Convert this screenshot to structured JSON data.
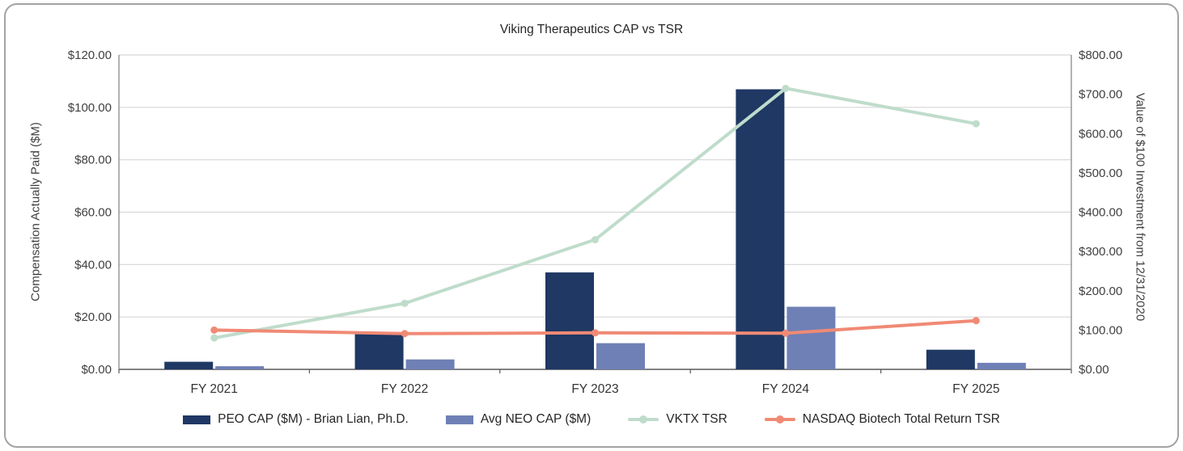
{
  "chart_data": {
    "type": "combo",
    "title": "Viking Therapeutics CAP vs TSR",
    "categories": [
      "FY 2021",
      "FY 2022",
      "FY 2023",
      "FY 2024",
      "FY 2025"
    ],
    "left_axis": {
      "label": "Compensation Actually Paid ($M)",
      "min": 0,
      "max": 120,
      "step": 20,
      "tick_prefix": "$",
      "tick_decimals": 2
    },
    "right_axis": {
      "label": "Value of $100 Investment from 12/31/2020",
      "min": 0,
      "max": 800,
      "step": 100,
      "tick_prefix": "$",
      "tick_decimals": 2
    },
    "bar_series": [
      {
        "name": "PEO CAP ($M) - Brian Lian, Ph.D.",
        "axis": "left",
        "color": "#1F3864",
        "values": [
          2.9,
          13.5,
          37.0,
          106.9,
          7.5
        ]
      },
      {
        "name": "Avg NEO CAP ($M)",
        "axis": "left",
        "color": "#6F80B6",
        "values": [
          1.2,
          3.8,
          10.0,
          23.9,
          2.5
        ]
      }
    ],
    "line_series": [
      {
        "name": "VKTX TSR",
        "axis": "right",
        "color": "#BFDCCB",
        "values": [
          80,
          168,
          330,
          715,
          625
        ]
      },
      {
        "name": "NASDAQ Biotech Total Return TSR",
        "axis": "right",
        "color": "#F08A75",
        "values": [
          100,
          91,
          93,
          92,
          124
        ]
      }
    ],
    "legend_position": "bottom",
    "grid": true,
    "colors": {
      "gridline": "#D6D6D6",
      "axis_line": "#808080",
      "baseline": "#595959",
      "tick_text": "#404040"
    }
  }
}
